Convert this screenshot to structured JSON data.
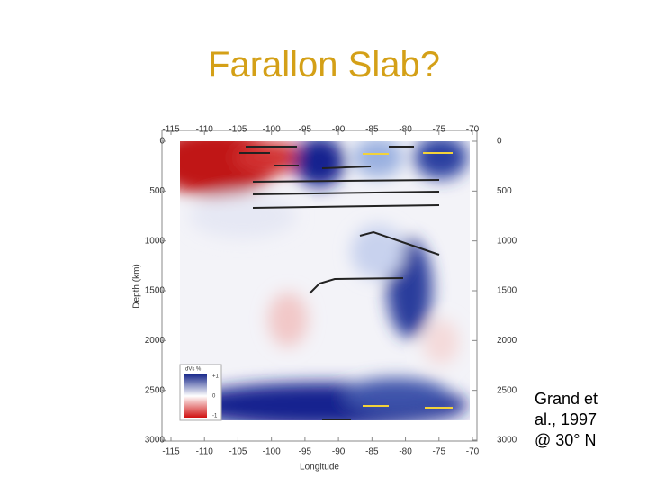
{
  "header": {
    "title": "Farallon Slab?"
  },
  "figure": {
    "x_label": "Longitude",
    "y_label": "Depth (km)",
    "x_ticks": [
      -115,
      -110,
      -105,
      -100,
      -95,
      -90,
      -85,
      -80,
      -75,
      -70
    ],
    "y_ticks": [
      0,
      500,
      1000,
      1500,
      2000,
      2500,
      3000
    ],
    "legend": {
      "title": "dVs %",
      "labels": [
        "+1",
        "0",
        "-1"
      ]
    }
  },
  "caption": {
    "lines": [
      "Grand et",
      "al., 1997",
      "@ 30° N"
    ]
  }
}
